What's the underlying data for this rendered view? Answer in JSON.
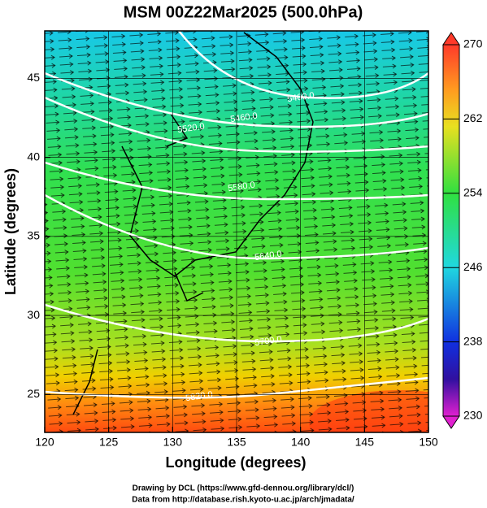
{
  "chart_data": {
    "type": "map",
    "title": "MSM 00Z22Mar2025 (500.0hPa)",
    "xlabel": "Longitude (degrees)",
    "ylabel": "Latitude  (degrees)",
    "xlim": [
      120,
      150
    ],
    "xticks": [
      120,
      125,
      130,
      135,
      140,
      145,
      150
    ],
    "ylim": [
      22.6,
      48.0
    ],
    "yticks": [
      25,
      30,
      35,
      40,
      45
    ],
    "grid": true,
    "contour_labels": [
      "5400.0",
      "5460.0",
      "5520.0",
      "5580.0",
      "5640.0",
      "5700.0",
      "5820.0"
    ],
    "colorbar": {
      "clim": [
        230,
        270
      ],
      "ticks": [
        230,
        238,
        246,
        254,
        262,
        270
      ]
    },
    "credits": [
      "Drawing by DCL (https://www.gfd-dennou.org/library/dcl/)",
      "Data from http://database.rish.kyoto-u.ac.jp/arch/jmadata/"
    ]
  }
}
